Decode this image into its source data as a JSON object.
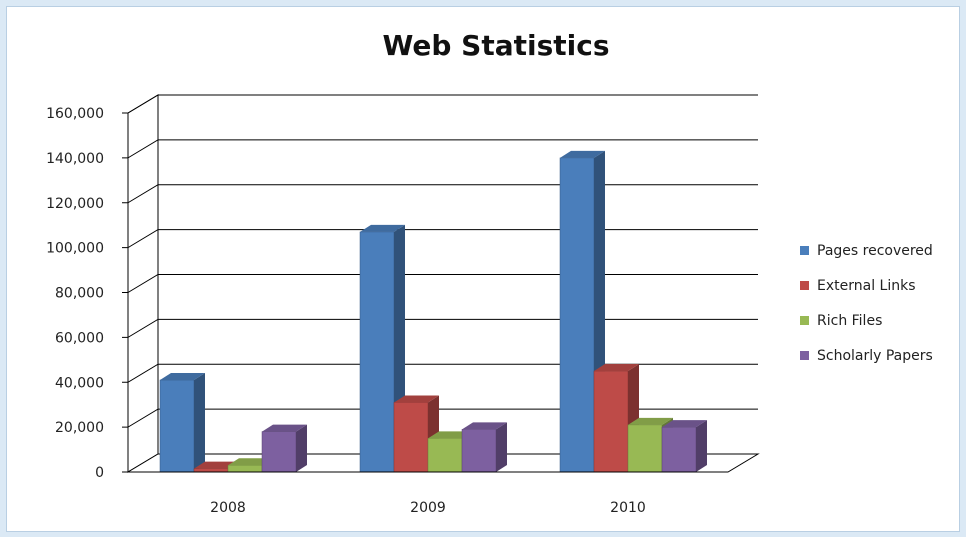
{
  "chart_data": {
    "type": "bar",
    "title": "Web Statistics",
    "categories": [
      "2008",
      "2009",
      "2010"
    ],
    "series": [
      {
        "name": "Pages recovered",
        "values": [
          41000,
          107000,
          140000
        ],
        "color": "#4a7ebb"
      },
      {
        "name": "External Links",
        "values": [
          1500,
          31000,
          45000
        ],
        "color": "#be4b48"
      },
      {
        "name": "Rich Files",
        "values": [
          3000,
          15000,
          21000
        ],
        "color": "#98b954"
      },
      {
        "name": "Scholarly Papers",
        "values": [
          18000,
          19000,
          20000
        ],
        "color": "#7d60a0"
      }
    ],
    "ylim": [
      0,
      160000
    ],
    "y_ticks": [
      "0",
      "20,000",
      "40,000",
      "60,000",
      "80,000",
      "100,000",
      "120,000",
      "140,000",
      "160,000"
    ],
    "grid": true,
    "legend": "right",
    "style": "3d-clustered-column"
  }
}
